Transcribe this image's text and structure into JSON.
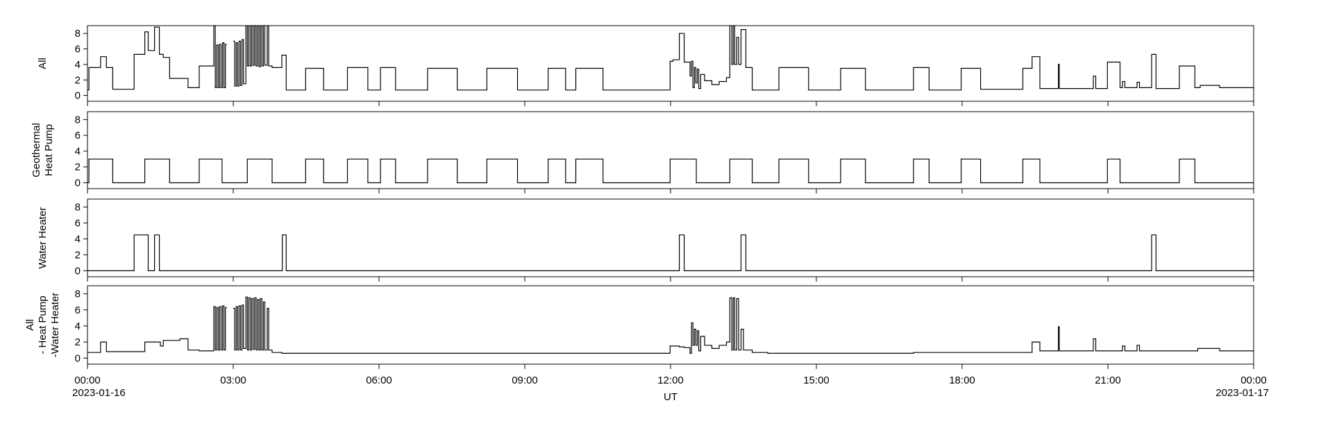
{
  "chart_data": [
    {
      "type": "line",
      "step": "post",
      "ylabel": [
        "All"
      ],
      "color": "#000000",
      "ylim": [
        -0.75,
        9
      ],
      "yticks": [
        0,
        2,
        4,
        6,
        8
      ],
      "x": [
        0,
        0.03,
        0.27,
        0.39,
        0.52,
        0.96,
        1.18,
        1.25,
        1.38,
        1.48,
        1.56,
        1.69,
        2.07,
        2.3,
        2.6,
        2.63,
        2.66,
        2.69,
        2.72,
        2.75,
        2.78,
        2.81,
        2.84,
        2.87,
        3.0,
        3.03,
        3.06,
        3.09,
        3.12,
        3.15,
        3.18,
        3.21,
        3.26,
        3.29,
        3.32,
        3.35,
        3.38,
        3.41,
        3.44,
        3.47,
        3.5,
        3.53,
        3.56,
        3.59,
        3.62,
        3.65,
        3.7,
        3.73,
        3.8,
        4.0,
        4.09,
        4.49,
        4.86,
        5.35,
        5.77,
        6.03,
        6.34,
        7.0,
        7.61,
        8.22,
        8.85,
        9.48,
        9.84,
        10.05,
        10.61,
        11.99,
        12.05,
        12.18,
        12.28,
        12.4,
        12.43,
        12.46,
        12.49,
        12.52,
        12.55,
        12.58,
        12.62,
        12.7,
        12.85,
        13.0,
        13.15,
        13.22,
        13.26,
        13.29,
        13.32,
        13.36,
        13.4,
        13.45,
        13.55,
        13.68,
        14.23,
        14.84,
        15.5,
        16.01,
        17.0,
        17.32,
        17.98,
        18.38,
        19.25,
        19.44,
        19.6,
        19.98,
        20.0,
        20.7,
        20.75,
        20.99,
        21.25,
        21.3,
        21.35,
        21.6,
        21.65,
        21.9,
        21.99,
        22.47,
        22.79,
        22.9,
        23.3,
        24
      ],
      "values": [
        0.7,
        3.6,
        5.0,
        3.6,
        0.8,
        5.3,
        8.2,
        5.8,
        8.8,
        5.3,
        4.9,
        2.2,
        1.0,
        3.8,
        9.0,
        1.0,
        6.5,
        1.0,
        6.6,
        1.0,
        6.8,
        1.0,
        6.6,
        null,
        7.0,
        1.2,
        6.8,
        1.2,
        7.0,
        1.3,
        7.2,
        1.5,
        9.0,
        3.8,
        9.0,
        3.8,
        9.0,
        3.9,
        9.0,
        3.8,
        9.0,
        3.7,
        9.0,
        3.8,
        9.0,
        3.9,
        9.0,
        3.8,
        3.6,
        5.2,
        0.7,
        3.5,
        0.7,
        3.6,
        0.7,
        3.6,
        0.7,
        3.5,
        0.7,
        3.5,
        0.7,
        3.5,
        0.7,
        3.5,
        0.7,
        4.4,
        4.6,
        8.0,
        4.3,
        2.5,
        4.4,
        1.0,
        3.6,
        1.6,
        3.4,
        0.9,
        2.7,
        1.9,
        1.4,
        1.8,
        2.3,
        9.0,
        4.0,
        9.0,
        4.0,
        7.5,
        4.0,
        8.5,
        3.6,
        0.7,
        3.6,
        0.7,
        3.5,
        0.7,
        3.6,
        0.7,
        3.5,
        0.8,
        3.5,
        5.0,
        0.9,
        4.0,
        0.9,
        2.5,
        0.9,
        4.3,
        1.0,
        1.8,
        1.0,
        1.7,
        1.0,
        5.3,
        0.9,
        3.8,
        1.0,
        1.3,
        1.0,
        0.8
      ]
    },
    {
      "type": "line",
      "step": "post",
      "ylabel": [
        "Geothermal",
        "Heat Pump"
      ],
      "color": "#000000",
      "ylim": [
        -0.75,
        9
      ],
      "yticks": [
        0,
        2,
        4,
        6,
        8
      ],
      "x": [
        0,
        0.03,
        0.52,
        1.18,
        1.69,
        2.3,
        2.77,
        3.29,
        3.8,
        4.49,
        4.86,
        5.35,
        5.77,
        6.03,
        6.34,
        7.0,
        7.61,
        8.22,
        8.85,
        9.48,
        9.84,
        10.05,
        10.61,
        11.99,
        12.53,
        13.22,
        13.68,
        14.23,
        14.84,
        15.5,
        16.01,
        17.0,
        17.32,
        17.98,
        18.38,
        19.25,
        19.6,
        20.99,
        21.25,
        22.47,
        22.79,
        24
      ],
      "values": [
        0,
        3,
        0,
        3,
        0,
        3,
        0,
        3,
        0,
        3,
        0,
        3,
        0,
        3,
        0,
        3,
        0,
        3,
        0,
        3,
        0,
        3,
        0,
        3,
        0,
        3,
        0,
        3,
        0,
        3,
        0,
        3,
        0,
        3,
        0,
        3,
        0,
        3,
        0,
        3,
        0,
        0
      ]
    },
    {
      "type": "line",
      "step": "post",
      "ylabel": [
        "Water Heater"
      ],
      "color": "#000000",
      "ylim": [
        -0.75,
        9
      ],
      "yticks": [
        0,
        2,
        4,
        6,
        8
      ],
      "x": [
        0,
        0.96,
        1.25,
        1.38,
        1.48,
        4.01,
        4.09,
        12.18,
        12.28,
        13.45,
        13.55,
        21.9,
        21.99,
        24
      ],
      "values": [
        0,
        4.5,
        0,
        4.5,
        0,
        4.5,
        0,
        4.5,
        0,
        4.5,
        0,
        4.5,
        0,
        0
      ]
    },
    {
      "type": "line",
      "step": "post",
      "ylabel": [
        "All",
        "- Heat Pump",
        "-Water Heater"
      ],
      "color": "#000000",
      "ylim": [
        -0.75,
        9
      ],
      "yticks": [
        0,
        2,
        4,
        6,
        8
      ],
      "x": [
        0,
        0.27,
        0.39,
        1.18,
        1.5,
        1.56,
        1.9,
        2.07,
        2.3,
        2.6,
        2.63,
        2.66,
        2.69,
        2.72,
        2.75,
        2.78,
        2.81,
        2.84,
        2.87,
        3.0,
        3.03,
        3.06,
        3.09,
        3.12,
        3.15,
        3.18,
        3.21,
        3.26,
        3.29,
        3.32,
        3.35,
        3.38,
        3.41,
        3.44,
        3.47,
        3.5,
        3.53,
        3.56,
        3.59,
        3.62,
        3.65,
        3.7,
        3.73,
        3.8,
        4.0,
        11.99,
        12.18,
        12.28,
        12.4,
        12.43,
        12.46,
        12.49,
        12.52,
        12.55,
        12.58,
        12.62,
        12.7,
        12.85,
        13.0,
        13.15,
        13.22,
        13.26,
        13.29,
        13.32,
        13.36,
        13.4,
        13.45,
        13.5,
        13.68,
        14.0,
        17.0,
        19.44,
        19.6,
        19.98,
        20.0,
        20.7,
        20.75,
        21.3,
        21.35,
        21.6,
        21.65,
        22.85,
        23.3,
        24
      ],
      "values": [
        0.7,
        2.0,
        0.8,
        2.0,
        1.5,
        2.2,
        2.4,
        1.0,
        0.9,
        6.4,
        1.0,
        6.3,
        1.0,
        6.4,
        1.0,
        6.5,
        1.0,
        6.3,
        null,
        6.2,
        1.0,
        6.4,
        1.0,
        6.5,
        1.0,
        6.6,
        1.2,
        7.6,
        1.0,
        7.5,
        1.0,
        7.4,
        1.1,
        7.5,
        1.0,
        7.3,
        1.0,
        7.4,
        1.0,
        7.0,
        1.0,
        6.2,
        1.0,
        0.7,
        0.6,
        1.5,
        1.4,
        1.3,
        0.6,
        4.4,
        1.6,
        3.6,
        1.6,
        3.4,
        0.9,
        2.7,
        1.6,
        1.2,
        1.6,
        2.0,
        7.5,
        1.0,
        7.5,
        1.0,
        7.4,
        1.0,
        3.6,
        1.0,
        0.7,
        0.6,
        0.7,
        2.0,
        0.9,
        3.9,
        0.9,
        2.4,
        0.9,
        1.5,
        0.9,
        1.6,
        0.9,
        1.2,
        0.9,
        0.8
      ],
      "xlabel": "UT",
      "xlim": [
        0,
        24
      ],
      "xticks": [
        {
          "value": 0,
          "label": "00:00",
          "date": "2023-01-16"
        },
        {
          "value": 3,
          "label": "03:00"
        },
        {
          "value": 6,
          "label": "06:00"
        },
        {
          "value": 9,
          "label": "09:00"
        },
        {
          "value": 12,
          "label": "12:00"
        },
        {
          "value": 15,
          "label": "15:00"
        },
        {
          "value": 18,
          "label": "18:00"
        },
        {
          "value": 21,
          "label": "21:00"
        },
        {
          "value": 24,
          "label": "00:00",
          "date": "2023-01-17"
        }
      ]
    }
  ]
}
